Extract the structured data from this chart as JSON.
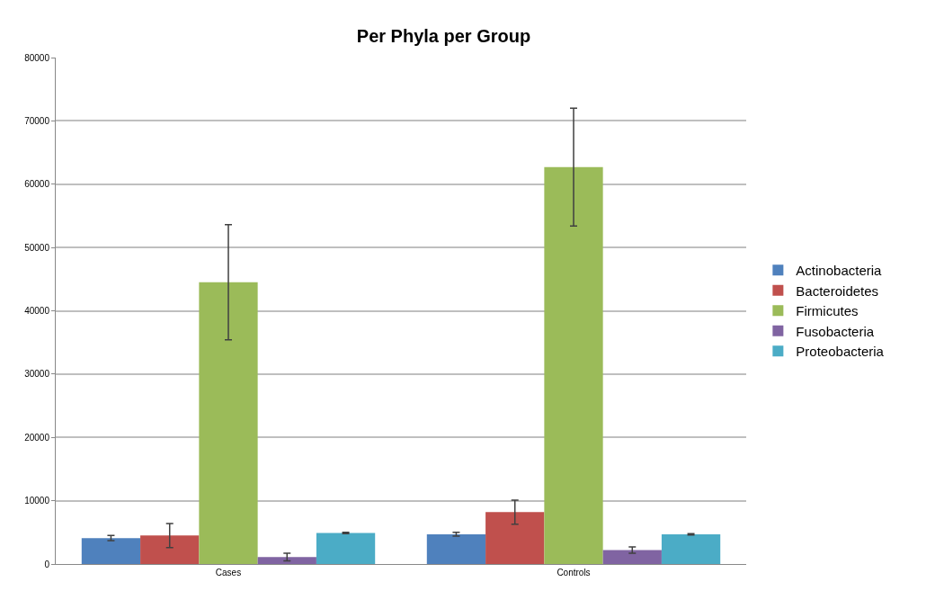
{
  "chart_data": {
    "type": "bar",
    "title": "Per Phyla per Group",
    "categories": [
      "Cases",
      "Controls"
    ],
    "series": [
      {
        "name": "Actinobacteria",
        "color": "#4f81bd",
        "values": [
          4100,
          4700
        ],
        "errors": [
          400,
          300
        ]
      },
      {
        "name": "Bacteroidetes",
        "color": "#c0504d",
        "values": [
          4500,
          8200
        ],
        "errors": [
          1900,
          1900
        ]
      },
      {
        "name": "Firmicutes",
        "color": "#9bbb59",
        "values": [
          44500,
          62700
        ],
        "errors": [
          9100,
          9300
        ]
      },
      {
        "name": "Fusobacteria",
        "color": "#8064a2",
        "values": [
          1100,
          2200
        ],
        "errors": [
          600,
          500
        ]
      },
      {
        "name": "Proteobacteria",
        "color": "#4bacc6",
        "values": [
          4900,
          4700
        ],
        "errors": [
          100,
          100
        ]
      }
    ],
    "ylim": [
      0,
      80000
    ],
    "yticks": [
      0,
      10000,
      20000,
      30000,
      40000,
      50000,
      60000,
      70000,
      80000
    ],
    "grid": "y",
    "legend": "right"
  }
}
